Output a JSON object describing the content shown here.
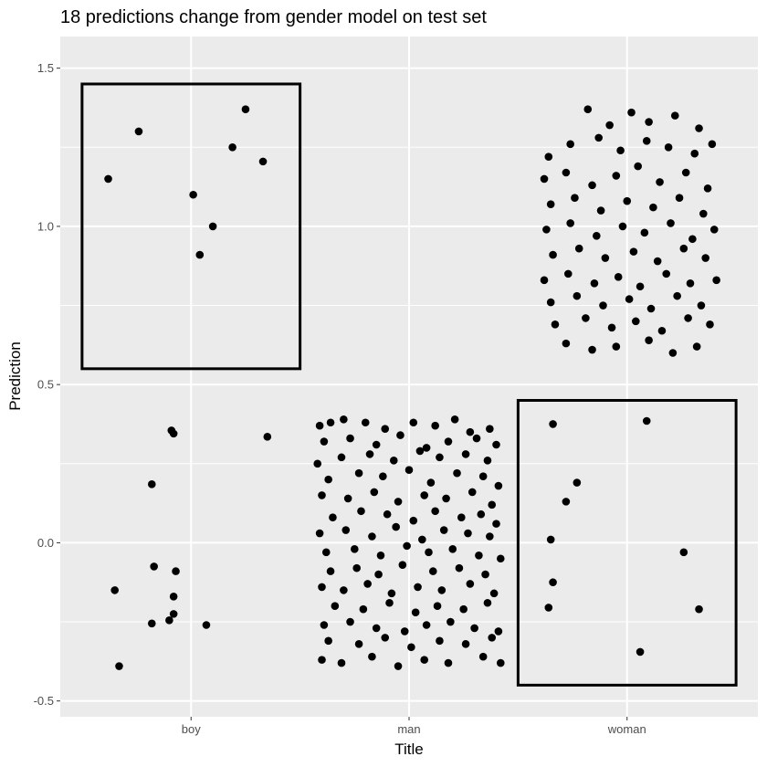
{
  "chart_data": {
    "type": "scatter",
    "title": "18 predictions change from gender model on test set",
    "xlabel": "Title",
    "ylabel": "Prediction",
    "categories": [
      "boy",
      "man",
      "woman"
    ],
    "ylim": [
      -0.55,
      1.6
    ],
    "yticks": [
      -0.5,
      0.0,
      0.5,
      1.0,
      1.5
    ],
    "ytick_labels": [
      "-0.5",
      "0.0",
      "0.5",
      "1.0",
      "1.5"
    ],
    "grid": true,
    "colors": {
      "panel": "#ebebeb",
      "grid": "#ffffff",
      "point": "#000000",
      "box": "#000000"
    },
    "highlight_boxes": [
      {
        "category_from": -0.5,
        "category_to": 0.5,
        "y_from": 0.55,
        "y_to": 1.45
      },
      {
        "category_from": 1.5,
        "category_to": 2.5,
        "y_from": -0.45,
        "y_to": 0.45
      }
    ],
    "series": [
      {
        "category": "boy",
        "points": [
          [
            -0.38,
            1.15
          ],
          [
            -0.24,
            1.3
          ],
          [
            0.01,
            1.1
          ],
          [
            0.04,
            0.91
          ],
          [
            0.1,
            1.0
          ],
          [
            0.19,
            1.25
          ],
          [
            0.25,
            1.37
          ],
          [
            0.33,
            1.205
          ],
          [
            -0.09,
            0.355
          ],
          [
            -0.08,
            0.345
          ],
          [
            0.35,
            0.335
          ],
          [
            -0.18,
            0.185
          ],
          [
            -0.17,
            -0.075
          ],
          [
            -0.07,
            -0.09
          ],
          [
            -0.08,
            -0.17
          ],
          [
            -0.35,
            -0.15
          ],
          [
            -0.08,
            -0.225
          ],
          [
            -0.1,
            -0.245
          ],
          [
            -0.18,
            -0.255
          ],
          [
            0.07,
            -0.26
          ],
          [
            -0.33,
            -0.39
          ]
        ]
      },
      {
        "category": "man",
        "points": [
          [
            -0.41,
            0.37
          ],
          [
            -0.36,
            0.38
          ],
          [
            -0.3,
            0.39
          ],
          [
            -0.2,
            0.38
          ],
          [
            -0.11,
            0.36
          ],
          [
            0.02,
            0.38
          ],
          [
            0.12,
            0.37
          ],
          [
            0.21,
            0.39
          ],
          [
            0.28,
            0.35
          ],
          [
            0.37,
            0.36
          ],
          [
            -0.39,
            0.32
          ],
          [
            -0.27,
            0.33
          ],
          [
            -0.15,
            0.31
          ],
          [
            -0.04,
            0.34
          ],
          [
            0.08,
            0.3
          ],
          [
            0.18,
            0.32
          ],
          [
            0.31,
            0.33
          ],
          [
            0.4,
            0.31
          ],
          [
            -0.42,
            0.25
          ],
          [
            -0.31,
            0.27
          ],
          [
            -0.18,
            0.28
          ],
          [
            -0.07,
            0.26
          ],
          [
            0.05,
            0.29
          ],
          [
            0.14,
            0.27
          ],
          [
            0.26,
            0.28
          ],
          [
            0.36,
            0.26
          ],
          [
            -0.37,
            0.2
          ],
          [
            -0.23,
            0.22
          ],
          [
            -0.12,
            0.21
          ],
          [
            0.0,
            0.23
          ],
          [
            0.1,
            0.19
          ],
          [
            0.22,
            0.22
          ],
          [
            0.34,
            0.21
          ],
          [
            0.41,
            0.18
          ],
          [
            -0.4,
            0.15
          ],
          [
            -0.28,
            0.14
          ],
          [
            -0.16,
            0.16
          ],
          [
            -0.05,
            0.13
          ],
          [
            0.07,
            0.15
          ],
          [
            0.17,
            0.14
          ],
          [
            0.29,
            0.16
          ],
          [
            0.38,
            0.12
          ],
          [
            -0.35,
            0.08
          ],
          [
            -0.22,
            0.1
          ],
          [
            -0.1,
            0.09
          ],
          [
            0.02,
            0.07
          ],
          [
            0.12,
            0.1
          ],
          [
            0.24,
            0.08
          ],
          [
            0.33,
            0.09
          ],
          [
            0.4,
            0.06
          ],
          [
            -0.41,
            0.03
          ],
          [
            -0.29,
            0.04
          ],
          [
            -0.17,
            0.02
          ],
          [
            -0.06,
            0.05
          ],
          [
            0.06,
            0.01
          ],
          [
            0.16,
            0.04
          ],
          [
            0.27,
            0.03
          ],
          [
            0.37,
            0.02
          ],
          [
            -0.38,
            -0.03
          ],
          [
            -0.25,
            -0.02
          ],
          [
            -0.13,
            -0.04
          ],
          [
            -0.01,
            -0.01
          ],
          [
            0.09,
            -0.03
          ],
          [
            0.2,
            -0.02
          ],
          [
            0.32,
            -0.04
          ],
          [
            0.42,
            -0.05
          ],
          [
            -0.36,
            -0.09
          ],
          [
            -0.24,
            -0.08
          ],
          [
            -0.14,
            -0.1
          ],
          [
            -0.03,
            -0.07
          ],
          [
            0.11,
            -0.09
          ],
          [
            0.23,
            -0.08
          ],
          [
            0.35,
            -0.1
          ],
          [
            -0.4,
            -0.14
          ],
          [
            -0.3,
            -0.15
          ],
          [
            -0.19,
            -0.13
          ],
          [
            -0.08,
            -0.16
          ],
          [
            0.04,
            -0.14
          ],
          [
            0.15,
            -0.15
          ],
          [
            0.28,
            -0.13
          ],
          [
            0.39,
            -0.16
          ],
          [
            -0.34,
            -0.2
          ],
          [
            -0.21,
            -0.21
          ],
          [
            -0.09,
            -0.19
          ],
          [
            0.03,
            -0.22
          ],
          [
            0.13,
            -0.2
          ],
          [
            0.25,
            -0.21
          ],
          [
            0.36,
            -0.19
          ],
          [
            -0.39,
            -0.26
          ],
          [
            -0.27,
            -0.25
          ],
          [
            -0.15,
            -0.27
          ],
          [
            -0.02,
            -0.28
          ],
          [
            0.08,
            -0.26
          ],
          [
            0.19,
            -0.25
          ],
          [
            0.3,
            -0.27
          ],
          [
            0.41,
            -0.28
          ],
          [
            -0.37,
            -0.31
          ],
          [
            -0.23,
            -0.32
          ],
          [
            -0.11,
            -0.3
          ],
          [
            0.01,
            -0.33
          ],
          [
            0.14,
            -0.31
          ],
          [
            0.26,
            -0.32
          ],
          [
            0.38,
            -0.3
          ],
          [
            -0.4,
            -0.37
          ],
          [
            -0.31,
            -0.38
          ],
          [
            -0.17,
            -0.36
          ],
          [
            -0.05,
            -0.39
          ],
          [
            0.07,
            -0.37
          ],
          [
            0.18,
            -0.38
          ],
          [
            0.34,
            -0.36
          ],
          [
            0.42,
            -0.38
          ]
        ]
      },
      {
        "category": "woman",
        "points": [
          [
            -0.18,
            1.37
          ],
          [
            -0.08,
            1.32
          ],
          [
            0.02,
            1.36
          ],
          [
            0.1,
            1.33
          ],
          [
            0.22,
            1.35
          ],
          [
            0.33,
            1.31
          ],
          [
            -0.36,
            1.22
          ],
          [
            -0.26,
            1.26
          ],
          [
            -0.13,
            1.28
          ],
          [
            -0.03,
            1.24
          ],
          [
            0.09,
            1.27
          ],
          [
            0.19,
            1.25
          ],
          [
            0.31,
            1.23
          ],
          [
            0.39,
            1.26
          ],
          [
            -0.38,
            1.15
          ],
          [
            -0.28,
            1.17
          ],
          [
            -0.16,
            1.13
          ],
          [
            -0.05,
            1.16
          ],
          [
            0.05,
            1.19
          ],
          [
            0.15,
            1.14
          ],
          [
            0.27,
            1.17
          ],
          [
            0.37,
            1.12
          ],
          [
            -0.35,
            1.07
          ],
          [
            -0.24,
            1.09
          ],
          [
            -0.12,
            1.05
          ],
          [
            0.0,
            1.08
          ],
          [
            0.12,
            1.06
          ],
          [
            0.24,
            1.09
          ],
          [
            0.35,
            1.04
          ],
          [
            -0.37,
            0.99
          ],
          [
            -0.26,
            1.01
          ],
          [
            -0.14,
            0.97
          ],
          [
            -0.02,
            1.0
          ],
          [
            0.08,
            0.98
          ],
          [
            0.2,
            1.01
          ],
          [
            0.3,
            0.96
          ],
          [
            0.4,
            0.99
          ],
          [
            -0.34,
            0.91
          ],
          [
            -0.22,
            0.93
          ],
          [
            -0.1,
            0.9
          ],
          [
            0.03,
            0.92
          ],
          [
            0.14,
            0.89
          ],
          [
            0.26,
            0.93
          ],
          [
            0.36,
            0.9
          ],
          [
            -0.38,
            0.83
          ],
          [
            -0.27,
            0.85
          ],
          [
            -0.15,
            0.82
          ],
          [
            -0.04,
            0.84
          ],
          [
            0.06,
            0.81
          ],
          [
            0.18,
            0.85
          ],
          [
            0.29,
            0.82
          ],
          [
            0.41,
            0.83
          ],
          [
            -0.35,
            0.76
          ],
          [
            -0.23,
            0.78
          ],
          [
            -0.11,
            0.75
          ],
          [
            0.01,
            0.77
          ],
          [
            0.11,
            0.74
          ],
          [
            0.23,
            0.78
          ],
          [
            0.34,
            0.75
          ],
          [
            -0.33,
            0.69
          ],
          [
            -0.19,
            0.71
          ],
          [
            -0.07,
            0.68
          ],
          [
            0.04,
            0.7
          ],
          [
            0.16,
            0.67
          ],
          [
            0.28,
            0.71
          ],
          [
            0.38,
            0.69
          ],
          [
            -0.28,
            0.63
          ],
          [
            -0.16,
            0.61
          ],
          [
            -0.05,
            0.62
          ],
          [
            0.1,
            0.64
          ],
          [
            0.21,
            0.6
          ],
          [
            0.32,
            0.62
          ],
          [
            -0.34,
            0.375
          ],
          [
            0.09,
            0.385
          ],
          [
            -0.23,
            0.19
          ],
          [
            -0.28,
            0.13
          ],
          [
            -0.35,
            0.01
          ],
          [
            -0.34,
            -0.125
          ],
          [
            0.26,
            -0.03
          ],
          [
            -0.36,
            -0.205
          ],
          [
            0.33,
            -0.21
          ],
          [
            0.06,
            -0.345
          ]
        ]
      }
    ]
  }
}
